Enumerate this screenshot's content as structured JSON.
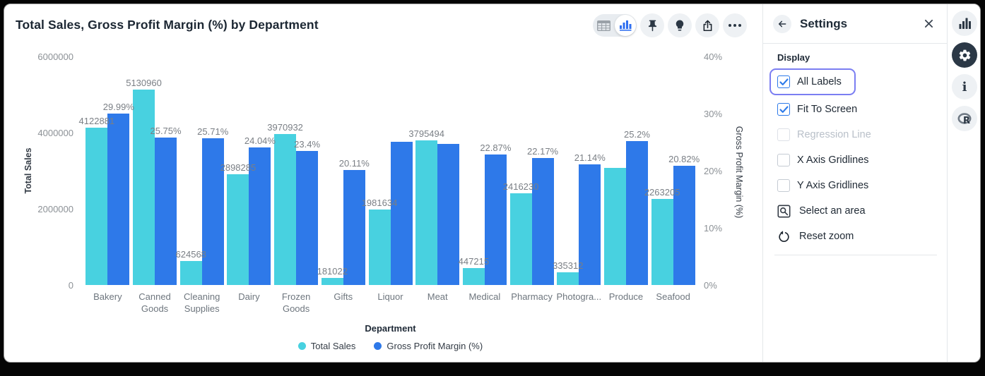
{
  "window_title": "Total Sales, Gross Profit Margin (%) by Department",
  "toolbar": {
    "icons": [
      "table-view-icon",
      "chart-view-icon",
      "pin-icon",
      "lightbulb-icon",
      "export-icon",
      "more-icon"
    ]
  },
  "chart_data": {
    "type": "bar",
    "title": "Total Sales, Gross Profit Margin (%) by Department",
    "xlabel": "Department",
    "categories": [
      "Bakery",
      "Canned Goods",
      "Cleaning Supplies",
      "Dairy",
      "Frozen Goods",
      "Gifts",
      "Liquor",
      "Meat",
      "Medical",
      "Pharmacy",
      "Photogra...",
      "Produce",
      "Seafood"
    ],
    "series": [
      {
        "name": "Total Sales",
        "axis": "left",
        "color": "#48d1e0",
        "values": [
          4122881,
          5130960,
          624568,
          2898285,
          3970932,
          181022,
          1981634,
          3795494,
          447215,
          2416230,
          335312,
          3070000,
          2263205
        ],
        "labels": [
          "4122881",
          "5130960",
          "624568",
          "2898285",
          "3970932",
          "181022",
          "1981634",
          "3795494",
          "447215",
          "2416230",
          "335312",
          "",
          "2263205"
        ]
      },
      {
        "name": "Gross Profit Margin (%)",
        "axis": "right",
        "color": "#2e79e9",
        "values": [
          29.99,
          25.75,
          25.71,
          24.04,
          23.4,
          20.11,
          25.06,
          24.73,
          22.87,
          22.17,
          21.14,
          25.2,
          20.82
        ],
        "labels": [
          "29.99%",
          "25.75%",
          "25.71%",
          "24.04%",
          "23.4%",
          "20.11%",
          "",
          "",
          "22.87%",
          "22.17%",
          "21.14%",
          "25.2%",
          "20.82%"
        ]
      }
    ],
    "left_axis": {
      "label": "Total Sales",
      "ticks": [
        "6000000",
        "4000000",
        "2000000",
        "0"
      ],
      "max": 6000000,
      "min": 0
    },
    "right_axis": {
      "label": "Gross Profit Margin (%)",
      "ticks": [
        "40%",
        "30%",
        "20%",
        "10%",
        "0%"
      ],
      "max": 40,
      "min": 0
    },
    "legend": [
      "Total Sales",
      "Gross Profit Margin (%)"
    ],
    "gridlines": false,
    "legend_position": "bottom"
  },
  "settings": {
    "title": "Settings",
    "section_title": "Display",
    "checkboxes": [
      {
        "label": "All Labels",
        "checked": true,
        "focused": true,
        "disabled": false
      },
      {
        "label": "Fit To Screen",
        "checked": true,
        "focused": false,
        "disabled": false
      },
      {
        "label": "Regression Line",
        "checked": false,
        "focused": false,
        "disabled": true
      },
      {
        "label": "X Axis Gridlines",
        "checked": false,
        "focused": false,
        "disabled": false
      },
      {
        "label": "Y Axis Gridlines",
        "checked": false,
        "focused": false,
        "disabled": false
      }
    ],
    "actions": [
      {
        "label": "Select an area",
        "icon": "area-select-icon"
      },
      {
        "label": "Reset zoom",
        "icon": "reset-zoom-icon"
      }
    ]
  },
  "rail": {
    "items": [
      {
        "icon": "chart-rail-icon",
        "active": false
      },
      {
        "icon": "settings-gear-icon",
        "active": true
      },
      {
        "icon": "info-icon",
        "active": false
      },
      {
        "icon": "r-logo-icon",
        "active": false
      }
    ]
  },
  "colors": {
    "series_total_sales": "#48d1e0",
    "series_gross_profit_margin": "#2e79e9",
    "checkbox_accent": "#2d7ae9",
    "focus_ring": "#7b7ef2",
    "active_rail": "#2b3846"
  }
}
